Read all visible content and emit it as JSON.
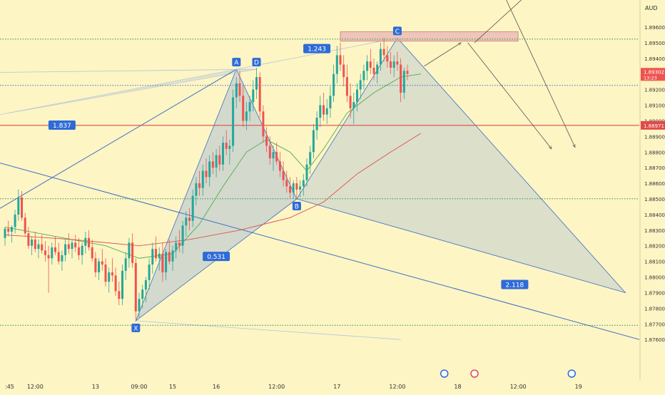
{
  "chart_data": {
    "type": "candlestick",
    "currency": "AUD",
    "price_axis": {
      "ylim": [
        1.8757,
        1.9006
      ],
      "ticks": [
        "1.89600",
        "1.89500",
        "1.89400",
        "1.89200",
        "1.89100",
        "1.89000",
        "1.88900",
        "1.88800",
        "1.88700",
        "1.88600",
        "1.88500",
        "1.88400",
        "1.88300",
        "1.88200",
        "1.88100",
        "1.88000",
        "1.87900",
        "1.87800",
        "1.87700",
        "1.87600"
      ]
    },
    "time_axis": {
      "ticks": [
        {
          "label": ":45",
          "bar": 0
        },
        {
          "label": "12:00",
          "bar": 9
        },
        {
          "label": "13",
          "bar": 27
        },
        {
          "label": "09:00",
          "bar": 40
        },
        {
          "label": "15",
          "bar": 50
        },
        {
          "label": "16",
          "bar": 63
        },
        {
          "label": "12:00",
          "bar": 81
        },
        {
          "label": "17",
          "bar": 99
        },
        {
          "label": "12:00",
          "bar": 117
        },
        {
          "label": "18",
          "bar": 135
        },
        {
          "label": "12:00",
          "bar": 153
        },
        {
          "label": "19",
          "bar": 171
        }
      ],
      "bar_count": 193
    },
    "current_price": {
      "value": 1.89302,
      "label": "1.89302",
      "countdown": "13:23"
    },
    "red_level": {
      "value": 1.88971,
      "label": "1.88971"
    },
    "dotted_levels": [
      1.89523,
      1.89227,
      1.88501,
      1.87691
    ],
    "harmonic_pattern": {
      "points": [
        {
          "name": "X",
          "bar": 39,
          "price": 1.8772
        },
        {
          "name": "A",
          "bar": 69,
          "price": 1.8933
        },
        {
          "name": "B",
          "bar": 87,
          "price": 1.885
        },
        {
          "name": "C",
          "bar": 117,
          "price": 1.8953
        },
        {
          "name": "D",
          "bar": 75,
          "price": 1.8933
        }
      ],
      "ratios": [
        {
          "label": "0.531",
          "bar": 63,
          "price": 1.8813
        },
        {
          "label": "1.243",
          "bar": 93,
          "price": 1.8946
        },
        {
          "label": "1.837",
          "bar": 17,
          "price": 1.8897
        },
        {
          "label": "2.118",
          "bar": 152,
          "price": 1.8795
        }
      ]
    },
    "zones": [
      {
        "bar_from": 130,
        "bar_to": 152,
        "price_from": 1.8999,
        "price_to": 1.9004
      },
      {
        "bar_from": 100,
        "bar_to": 153,
        "price_from": 1.8951,
        "price_to": 1.8957
      }
    ],
    "candles": [
      [
        1.8825,
        1.8832,
        1.882,
        1.8831
      ],
      [
        1.8831,
        1.8836,
        1.8826,
        1.8829
      ],
      [
        1.8829,
        1.8833,
        1.8822,
        1.8832
      ],
      [
        1.8832,
        1.8843,
        1.8828,
        1.884
      ],
      [
        1.884,
        1.8856,
        1.8836,
        1.8851
      ],
      [
        1.8851,
        1.8855,
        1.8836,
        1.8838
      ],
      [
        1.8838,
        1.8841,
        1.8826,
        1.8828
      ],
      [
        1.8828,
        1.8832,
        1.8818,
        1.882
      ],
      [
        1.882,
        1.8826,
        1.8814,
        1.8824
      ],
      [
        1.8824,
        1.8829,
        1.8816,
        1.8818
      ],
      [
        1.8818,
        1.8824,
        1.8812,
        1.8821
      ],
      [
        1.8821,
        1.8827,
        1.8815,
        1.8817
      ],
      [
        1.8817,
        1.8823,
        1.881,
        1.8814
      ],
      [
        1.8814,
        1.882,
        1.879,
        1.8812
      ],
      [
        1.8812,
        1.8822,
        1.8808,
        1.8819
      ],
      [
        1.8819,
        1.8826,
        1.8814,
        1.8816
      ],
      [
        1.8816,
        1.8822,
        1.8808,
        1.881
      ],
      [
        1.881,
        1.8817,
        1.8804,
        1.8814
      ],
      [
        1.8814,
        1.8824,
        1.881,
        1.8821
      ],
      [
        1.8821,
        1.8828,
        1.8815,
        1.8818
      ],
      [
        1.8818,
        1.8824,
        1.8812,
        1.8822
      ],
      [
        1.8822,
        1.8827,
        1.8816,
        1.8819
      ],
      [
        1.8819,
        1.8825,
        1.8811,
        1.8814
      ],
      [
        1.8814,
        1.8822,
        1.8808,
        1.882
      ],
      [
        1.882,
        1.8829,
        1.8815,
        1.8825
      ],
      [
        1.8825,
        1.883,
        1.8817,
        1.8819
      ],
      [
        1.8819,
        1.8824,
        1.881,
        1.8812
      ],
      [
        1.8812,
        1.8816,
        1.88,
        1.8803
      ],
      [
        1.8803,
        1.8812,
        1.8798,
        1.881
      ],
      [
        1.881,
        1.8818,
        1.8804,
        1.8808
      ],
      [
        1.8808,
        1.8812,
        1.8794,
        1.8797
      ],
      [
        1.8797,
        1.8806,
        1.879,
        1.8803
      ],
      [
        1.8803,
        1.8812,
        1.8797,
        1.8801
      ],
      [
        1.8801,
        1.8806,
        1.8788,
        1.8791
      ],
      [
        1.8791,
        1.8797,
        1.8782,
        1.8786
      ],
      [
        1.8786,
        1.8808,
        1.8782,
        1.8804
      ],
      [
        1.8804,
        1.8816,
        1.8798,
        1.8812
      ],
      [
        1.8812,
        1.8825,
        1.8806,
        1.8822
      ],
      [
        1.8822,
        1.8828,
        1.8806,
        1.8809
      ],
      [
        1.8809,
        1.8812,
        1.8772,
        1.8778
      ],
      [
        1.8778,
        1.879,
        1.8774,
        1.8786
      ],
      [
        1.8786,
        1.8795,
        1.878,
        1.8792
      ],
      [
        1.8792,
        1.88,
        1.8784,
        1.8798
      ],
      [
        1.8798,
        1.8812,
        1.8792,
        1.8808
      ],
      [
        1.8808,
        1.8822,
        1.8802,
        1.8818
      ],
      [
        1.8818,
        1.8826,
        1.881,
        1.8812
      ],
      [
        1.8812,
        1.8819,
        1.8804,
        1.8815
      ],
      [
        1.8815,
        1.8822,
        1.8797,
        1.8803
      ],
      [
        1.8803,
        1.8818,
        1.8798,
        1.8816
      ],
      [
        1.8816,
        1.8824,
        1.8808,
        1.881
      ],
      [
        1.881,
        1.882,
        1.8804,
        1.8817
      ],
      [
        1.8817,
        1.8826,
        1.8812,
        1.8822
      ],
      [
        1.8822,
        1.883,
        1.8816,
        1.882
      ],
      [
        1.882,
        1.8836,
        1.8815,
        1.8833
      ],
      [
        1.8833,
        1.8842,
        1.8826,
        1.8838
      ],
      [
        1.8838,
        1.8844,
        1.883,
        1.8836
      ],
      [
        1.8836,
        1.8856,
        1.8832,
        1.8852
      ],
      [
        1.8852,
        1.8864,
        1.8846,
        1.886
      ],
      [
        1.886,
        1.8868,
        1.8852,
        1.8857
      ],
      [
        1.8857,
        1.8872,
        1.8852,
        1.8868
      ],
      [
        1.8868,
        1.8876,
        1.886,
        1.8864
      ],
      [
        1.8864,
        1.8878,
        1.8858,
        1.8874
      ],
      [
        1.8874,
        1.888,
        1.8866,
        1.887
      ],
      [
        1.887,
        1.8882,
        1.8864,
        1.8878
      ],
      [
        1.8878,
        1.8884,
        1.8868,
        1.8872
      ],
      [
        1.8872,
        1.889,
        1.8868,
        1.8886
      ],
      [
        1.8886,
        1.8894,
        1.8878,
        1.8882
      ],
      [
        1.8882,
        1.8888,
        1.8872,
        1.8884
      ],
      [
        1.8884,
        1.892,
        1.888,
        1.8915
      ],
      [
        1.8915,
        1.8928,
        1.8908,
        1.8924
      ],
      [
        1.8924,
        1.8932,
        1.8912,
        1.8916
      ],
      [
        1.8916,
        1.8922,
        1.8896,
        1.89
      ],
      [
        1.89,
        1.8912,
        1.8894,
        1.8906
      ],
      [
        1.8906,
        1.8916,
        1.89,
        1.8912
      ],
      [
        1.8912,
        1.8926,
        1.8906,
        1.892
      ],
      [
        1.892,
        1.8934,
        1.8914,
        1.8928
      ],
      [
        1.8928,
        1.8931,
        1.8902,
        1.8906
      ],
      [
        1.8906,
        1.891,
        1.8886,
        1.889
      ],
      [
        1.889,
        1.8896,
        1.888,
        1.8884
      ],
      [
        1.8884,
        1.889,
        1.8872,
        1.8876
      ],
      [
        1.8876,
        1.8884,
        1.8868,
        1.888
      ],
      [
        1.888,
        1.8886,
        1.8872,
        1.8874
      ],
      [
        1.8874,
        1.888,
        1.8864,
        1.8868
      ],
      [
        1.8868,
        1.8874,
        1.8858,
        1.8862
      ],
      [
        1.8862,
        1.8868,
        1.8854,
        1.8858
      ],
      [
        1.8858,
        1.8864,
        1.885,
        1.8854
      ],
      [
        1.8854,
        1.8862,
        1.885,
        1.886
      ],
      [
        1.886,
        1.8864,
        1.8851,
        1.8856
      ],
      [
        1.8856,
        1.8862,
        1.8851,
        1.8858
      ],
      [
        1.8858,
        1.8866,
        1.8852,
        1.8862
      ],
      [
        1.8862,
        1.8876,
        1.8858,
        1.8872
      ],
      [
        1.8872,
        1.8884,
        1.8866,
        1.888
      ],
      [
        1.888,
        1.8898,
        1.8876,
        1.8894
      ],
      [
        1.8894,
        1.8906,
        1.8888,
        1.8902
      ],
      [
        1.8902,
        1.8916,
        1.8896,
        1.891
      ],
      [
        1.891,
        1.8918,
        1.89,
        1.8904
      ],
      [
        1.8904,
        1.8914,
        1.8898,
        1.8908
      ],
      [
        1.8908,
        1.8922,
        1.8902,
        1.8916
      ],
      [
        1.8916,
        1.8936,
        1.8912,
        1.893
      ],
      [
        1.893,
        1.8948,
        1.8924,
        1.8942
      ],
      [
        1.8942,
        1.895,
        1.8932,
        1.8936
      ],
      [
        1.8936,
        1.8942,
        1.8922,
        1.8928
      ],
      [
        1.8928,
        1.8936,
        1.8912,
        1.8916
      ],
      [
        1.8916,
        1.8924,
        1.8902,
        1.8908
      ],
      [
        1.8908,
        1.8918,
        1.8898,
        1.8912
      ],
      [
        1.8912,
        1.8924,
        1.8906,
        1.892
      ],
      [
        1.892,
        1.893,
        1.8914,
        1.8926
      ],
      [
        1.8926,
        1.8936,
        1.892,
        1.8932
      ],
      [
        1.8932,
        1.8942,
        1.8926,
        1.8938
      ],
      [
        1.8938,
        1.8946,
        1.893,
        1.8934
      ],
      [
        1.8934,
        1.894,
        1.8926,
        1.893
      ],
      [
        1.893,
        1.8938,
        1.8924,
        1.8936
      ],
      [
        1.8936,
        1.895,
        1.8932,
        1.8946
      ],
      [
        1.8946,
        1.8953,
        1.8938,
        1.8942
      ],
      [
        1.8942,
        1.8948,
        1.8934,
        1.8938
      ],
      [
        1.8938,
        1.8944,
        1.893,
        1.8934
      ],
      [
        1.8934,
        1.8942,
        1.8928,
        1.8938
      ],
      [
        1.8938,
        1.8944,
        1.8932,
        1.8936
      ],
      [
        1.8936,
        1.894,
        1.8912,
        1.8918
      ],
      [
        1.8918,
        1.8934,
        1.8914,
        1.8932
      ],
      [
        1.8932,
        1.8936,
        1.8926,
        1.893
      ]
    ],
    "moving_averages": [
      {
        "color": "#4caf50",
        "values": [
          {
            "bar": 0,
            "price": 1.8832
          },
          {
            "bar": 15,
            "price": 1.8826
          },
          {
            "bar": 30,
            "price": 1.882
          },
          {
            "bar": 40,
            "price": 1.8812
          },
          {
            "bar": 50,
            "price": 1.8815
          },
          {
            "bar": 58,
            "price": 1.8834
          },
          {
            "bar": 65,
            "price": 1.8858
          },
          {
            "bar": 72,
            "price": 1.888
          },
          {
            "bar": 78,
            "price": 1.8888
          },
          {
            "bar": 85,
            "price": 1.888
          },
          {
            "bar": 90,
            "price": 1.8868
          },
          {
            "bar": 95,
            "price": 1.8882
          },
          {
            "bar": 102,
            "price": 1.8905
          },
          {
            "bar": 110,
            "price": 1.8918
          },
          {
            "bar": 118,
            "price": 1.8928
          },
          {
            "bar": 124,
            "price": 1.893
          }
        ]
      },
      {
        "color": "#d9534f",
        "values": [
          {
            "bar": 0,
            "price": 1.8827
          },
          {
            "bar": 20,
            "price": 1.8824
          },
          {
            "bar": 40,
            "price": 1.882
          },
          {
            "bar": 55,
            "price": 1.8824
          },
          {
            "bar": 70,
            "price": 1.883
          },
          {
            "bar": 85,
            "price": 1.8838
          },
          {
            "bar": 95,
            "price": 1.8848
          },
          {
            "bar": 105,
            "price": 1.8866
          },
          {
            "bar": 115,
            "price": 1.888
          },
          {
            "bar": 124,
            "price": 1.8892
          }
        ]
      }
    ],
    "projection_arrows": [
      {
        "from_bar": 125,
        "from_price": 1.8935,
        "to_bar": 136,
        "to_price": 1.895
      },
      {
        "from_bar": 138,
        "from_price": 1.895,
        "to_bar": 163,
        "to_price": 1.8882
      },
      {
        "from_bar": 140,
        "from_price": 1.895,
        "to_bar": 165,
        "to_price": 1.8999
      },
      {
        "from_bar": 145,
        "from_price": 1.8998,
        "to_bar": 170,
        "to_price": 1.8883
      }
    ]
  }
}
